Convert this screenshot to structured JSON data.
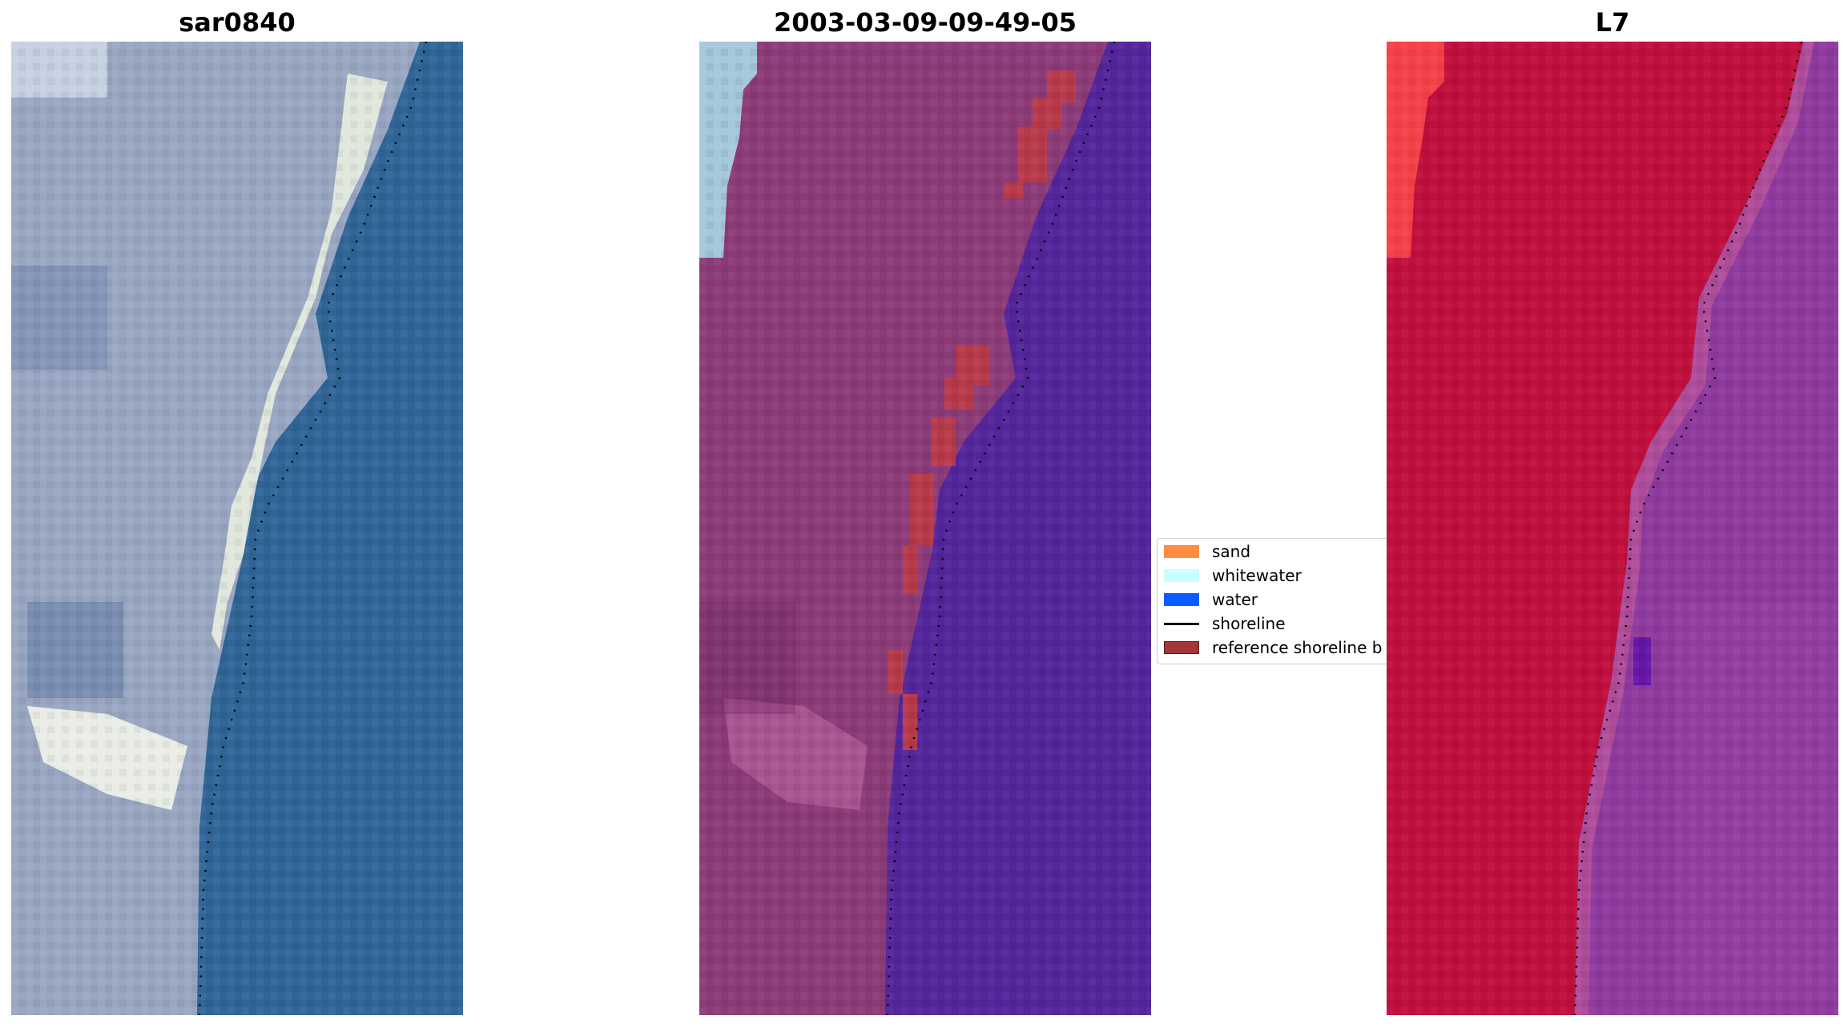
{
  "panels": [
    {
      "title": "sar0840"
    },
    {
      "title": "2003-03-09-09-49-05"
    },
    {
      "title": "L7"
    }
  ],
  "legend": {
    "items": [
      {
        "label": "sand",
        "color": "#ff8c3f",
        "type": "patch"
      },
      {
        "label": "whitewater",
        "color": "#c8ffff",
        "type": "patch"
      },
      {
        "label": "water",
        "color": "#0a5cff",
        "type": "patch"
      },
      {
        "label": "shoreline",
        "color": "#000000",
        "type": "line"
      },
      {
        "label": "reference shoreline b",
        "color": "#a33639",
        "type": "patch"
      }
    ]
  },
  "colors": {
    "rgb_water": "#2e6496",
    "rgb_land": "#9aa8c4",
    "rgb_beach": "#f2f4e6",
    "classified_water": "#54259b",
    "classified_land": "#8c3b78",
    "reference_buffer": "#b83a4a",
    "ndwi_land": "#c00f3d",
    "ndwi_water": "#8f3a9e"
  }
}
